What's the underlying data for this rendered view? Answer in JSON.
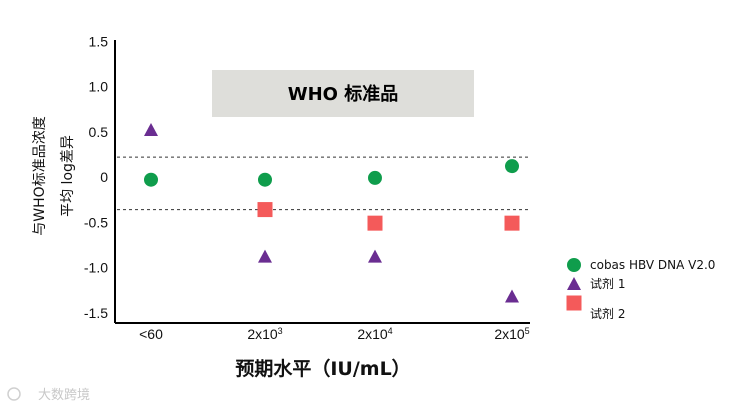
{
  "chart_data": {
    "type": "scatter",
    "title": "",
    "ylabel_line1": "与WHO标准品浓度",
    "ylabel_line2": "平均 log差异",
    "xlabel": "预期水平（IU/mL）",
    "banner": "WHO 标准品",
    "ylim": [
      -1.6,
      1.6
    ],
    "yticks": [
      "1.5",
      "1.0",
      "0.5",
      "0",
      "-0.5",
      "-1.0",
      "-1.5"
    ],
    "ytick_values": [
      1.5,
      1.0,
      0.5,
      0,
      -0.5,
      -1.0,
      -1.5
    ],
    "categories": [
      {
        "base": "<60",
        "exp": ""
      },
      {
        "base": "2x10",
        "exp": "3"
      },
      {
        "base": "2x10",
        "exp": "4"
      },
      {
        "base": "2x10",
        "exp": "5"
      }
    ],
    "reference_lines": [
      0.22,
      -0.36
    ],
    "grid": false,
    "legend_position": "bottom-right",
    "series": [
      {
        "name": "cobas HBV DNA V2.0",
        "marker": "circle",
        "color": "#0f9d4c",
        "values": [
          -0.03,
          -0.03,
          -0.01,
          0.12
        ]
      },
      {
        "name": "试剂 1",
        "marker": "triangle",
        "color": "#6a2d91",
        "values": [
          0.52,
          -0.88,
          -0.88,
          -1.32
        ]
      },
      {
        "name": "试剂 2",
        "marker": "square",
        "color": "#f45a5a",
        "values": [
          null,
          -0.36,
          -0.51,
          -0.51
        ]
      }
    ],
    "watermark": "大数跨境"
  }
}
